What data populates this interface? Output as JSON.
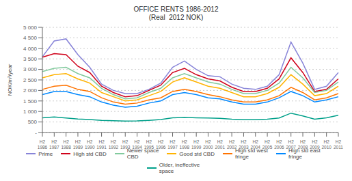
{
  "chart_data": {
    "type": "line",
    "title": "OFFICE RENTS 1986-2012\n(Real  2012 NOK)",
    "y_label": "NOK/m²/year",
    "categories": [
      "H2\n1986",
      "H2\n1987",
      "H2\n1988",
      "H2\n1989",
      "H2\n1990",
      "H2\n1991",
      "H2\n1992",
      "H2\n1993",
      "H2\n1994",
      "H2\n1995",
      "H2\n1996",
      "H2\n1997",
      "H2\n1998",
      "H2\n1999",
      "H2\n2000",
      "H2\n2001",
      "H2\n2002",
      "H2\n2003",
      "H2\n2004",
      "H2\n2005",
      "H2\n2006",
      "H2\n2007",
      "H2\n2008",
      "H2\n2009",
      "H2\n2010",
      "H2\n2011"
    ],
    "series": [
      {
        "name": "Prime",
        "color": "#8884d8",
        "values": [
          3600,
          4350,
          4450,
          3700,
          3100,
          2300,
          2000,
          1850,
          1850,
          2050,
          2350,
          3100,
          3400,
          3000,
          2700,
          2650,
          2300,
          2100,
          2050,
          2200,
          2750,
          4300,
          3300,
          2050,
          2200,
          2850
        ]
      },
      {
        "name": "High std CBD",
        "color": "#d0021b",
        "values": [
          3580,
          3750,
          3700,
          3150,
          2850,
          2200,
          1900,
          1700,
          1750,
          2000,
          2250,
          2850,
          3050,
          2750,
          2550,
          2450,
          2150,
          1950,
          1950,
          2100,
          2550,
          3550,
          2850,
          1950,
          2050,
          2550
        ]
      },
      {
        "name": "Newer space\nCBD",
        "color": "#82ca9d",
        "values": [
          2900,
          3050,
          3100,
          2800,
          2600,
          2100,
          1800,
          1600,
          1650,
          1900,
          2100,
          2600,
          2800,
          2600,
          2400,
          2300,
          2050,
          1850,
          1850,
          2000,
          2350,
          3100,
          2600,
          1900,
          2000,
          2400
        ]
      },
      {
        "name": "Good std CBD",
        "color": "#ffb300",
        "values": [
          2600,
          2750,
          2800,
          2550,
          2350,
          1900,
          1700,
          1500,
          1550,
          1750,
          1950,
          2400,
          2600,
          2400,
          2200,
          2100,
          1900,
          1700,
          1700,
          1850,
          2150,
          2750,
          2300,
          1750,
          1850,
          2200
        ]
      },
      {
        "name": "High std west\nfringe",
        "color": "#ff7300",
        "values": [
          2050,
          2200,
          2250,
          2050,
          1950,
          1650,
          1450,
          1350,
          1400,
          1550,
          1650,
          1950,
          2050,
          1950,
          1800,
          1700,
          1550,
          1450,
          1450,
          1550,
          1750,
          2150,
          1900,
          1550,
          1650,
          1850
        ]
      },
      {
        "name": "High std east\nfringe",
        "color": "#0088fe",
        "values": [
          1800,
          1950,
          1950,
          1800,
          1700,
          1450,
          1300,
          1200,
          1250,
          1400,
          1500,
          1800,
          1900,
          1800,
          1650,
          1600,
          1450,
          1350,
          1350,
          1450,
          1650,
          1950,
          1750,
          1450,
          1550,
          1700
        ]
      },
      {
        "name": "Older, ineffective\nspace",
        "color": "#00a08a",
        "values": [
          700,
          740,
          690,
          640,
          620,
          580,
          560,
          540,
          550,
          580,
          620,
          700,
          720,
          700,
          690,
          670,
          630,
          610,
          610,
          630,
          690,
          920,
          790,
          630,
          700,
          820
        ]
      }
    ],
    "ylim": [
      0,
      5000
    ],
    "yticks": [
      {
        "value": 0,
        "label": "-"
      },
      500,
      {
        "value": 1000,
        "label": "1 000"
      },
      {
        "value": 1500,
        "label": "1 500"
      },
      {
        "value": 2000,
        "label": "2 000"
      },
      {
        "value": 2500,
        "label": "2 500"
      },
      {
        "value": 3000,
        "label": "3 000"
      },
      {
        "value": 3500,
        "label": "3 500"
      },
      {
        "value": 4000,
        "label": "4 000"
      },
      {
        "value": 4500,
        "label": "4 500"
      },
      {
        "value": 5000,
        "label": "5 000"
      }
    ],
    "grid": true,
    "legend": "bottom"
  }
}
